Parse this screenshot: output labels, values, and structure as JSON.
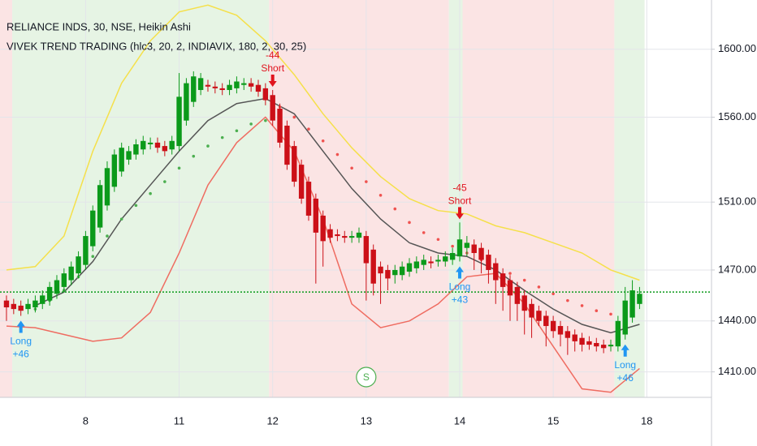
{
  "chart_data": {
    "type": "candlestick",
    "title": "RELIANCE INDS, 30, NSE, Heikin Ashi",
    "subtitle": "VIVEK TREND TRADING (hlc3, 20, 2, INDIAVIX, 180, 2, 30, 25)",
    "xlim": [
      -0.9,
      98
    ],
    "ylim": [
      1395,
      1629
    ],
    "xticks": [
      {
        "value": 11,
        "label": "8"
      },
      {
        "value": 24,
        "label": "11"
      },
      {
        "value": 37,
        "label": "12"
      },
      {
        "value": 50,
        "label": "13"
      },
      {
        "value": 63,
        "label": "14"
      },
      {
        "value": 76,
        "label": "15"
      },
      {
        "value": 89,
        "label": "18"
      }
    ],
    "yticks": [
      {
        "value": 1600,
        "label": "1600.00"
      },
      {
        "value": 1560,
        "label": "1560.00"
      },
      {
        "value": 1510,
        "label": "1510.00"
      },
      {
        "value": 1470,
        "label": "1470.00"
      },
      {
        "value": 1440,
        "label": "1440.00"
      },
      {
        "value": 1410,
        "label": "1410.00"
      }
    ],
    "grid": true,
    "up_color": "#0b9a1a",
    "down_color": "#cc1018",
    "open": [
      1452,
      1450,
      1449,
      1447,
      1448,
      1450,
      1452,
      1456,
      1460,
      1464,
      1468,
      1473,
      1484,
      1495,
      1508,
      1519,
      1528,
      1535,
      1538,
      1541,
      1544,
      1545,
      1543,
      1541,
      1543,
      1558,
      1569,
      1576,
      1579,
      1578,
      1577,
      1576,
      1577,
      1579,
      1580,
      1579,
      1577,
      1573,
      1565,
      1555,
      1543,
      1532,
      1522,
      1512,
      1502,
      1494,
      1491,
      1490,
      1489,
      1489,
      1490,
      1482,
      1472,
      1470,
      1467,
      1467,
      1469,
      1471,
      1473,
      1475,
      1475,
      1475,
      1476,
      1478,
      1483,
      1485,
      1483,
      1479,
      1474,
      1468,
      1464,
      1460,
      1455,
      1450,
      1446,
      1443,
      1440,
      1437,
      1434,
      1432,
      1430,
      1428,
      1427,
      1426,
      1425,
      1425,
      1432,
      1442,
      1450
    ],
    "high": [
      1455,
      1453,
      1452,
      1453,
      1455,
      1458,
      1463,
      1467,
      1471,
      1475,
      1481,
      1493,
      1508,
      1523,
      1534,
      1541,
      1545,
      1543,
      1547,
      1549,
      1548,
      1548,
      1546,
      1549,
      1586,
      1583,
      1587,
      1586,
      1582,
      1581,
      1580,
      1582,
      1584,
      1583,
      1583,
      1582,
      1580,
      1576,
      1568,
      1558,
      1546,
      1535,
      1525,
      1515,
      1505,
      1497,
      1494,
      1493,
      1493,
      1495,
      1493,
      1485,
      1475,
      1473,
      1473,
      1475,
      1477,
      1478,
      1479,
      1478,
      1479,
      1481,
      1483,
      1498,
      1490,
      1488,
      1486,
      1482,
      1477,
      1471,
      1467,
      1463,
      1458,
      1453,
      1449,
      1446,
      1443,
      1440,
      1437,
      1435,
      1433,
      1431,
      1430,
      1429,
      1429,
      1443,
      1460,
      1464,
      1460
    ],
    "low": [
      1440,
      1444,
      1443,
      1444,
      1445,
      1447,
      1449,
      1453,
      1457,
      1461,
      1465,
      1470,
      1481,
      1492,
      1505,
      1516,
      1525,
      1532,
      1535,
      1538,
      1541,
      1539,
      1537,
      1538,
      1540,
      1555,
      1566,
      1573,
      1575,
      1574,
      1573,
      1573,
      1574,
      1576,
      1575,
      1572,
      1567,
      1555,
      1542,
      1529,
      1519,
      1509,
      1499,
      1462,
      1472,
      1486,
      1487,
      1486,
      1486,
      1486,
      1452,
      1455,
      1450,
      1458,
      1462,
      1464,
      1466,
      1468,
      1470,
      1471,
      1472,
      1472,
      1473,
      1475,
      1478,
      1470,
      1468,
      1462,
      1450,
      1446,
      1440,
      1440,
      1432,
      1430,
      1437,
      1425,
      1430,
      1425,
      1420,
      1422,
      1422,
      1423,
      1422,
      1421,
      1422,
      1422,
      1429,
      1439,
      1447
    ],
    "close": [
      1448,
      1447,
      1446,
      1450,
      1452,
      1455,
      1460,
      1464,
      1468,
      1472,
      1478,
      1490,
      1505,
      1520,
      1530,
      1538,
      1542,
      1540,
      1544,
      1546,
      1545,
      1542,
      1540,
      1546,
      1572,
      1580,
      1584,
      1583,
      1578,
      1577,
      1576,
      1579,
      1581,
      1580,
      1578,
      1575,
      1570,
      1558,
      1545,
      1532,
      1522,
      1512,
      1502,
      1492,
      1487,
      1489,
      1490,
      1489,
      1490,
      1492,
      1474,
      1462,
      1468,
      1465,
      1470,
      1472,
      1474,
      1475,
      1476,
      1474,
      1476,
      1478,
      1480,
      1488,
      1486,
      1480,
      1476,
      1470,
      1464,
      1460,
      1455,
      1450,
      1446,
      1442,
      1440,
      1437,
      1434,
      1432,
      1430,
      1428,
      1426,
      1426,
      1425,
      1424,
      1426,
      1440,
      1452,
      1458,
      1456
    ],
    "lines": [
      {
        "color": "#555555",
        "x": [
          4,
          8,
          12,
          16,
          20,
          24,
          28,
          32,
          36,
          40,
          44,
          48,
          52,
          56,
          60,
          64,
          68,
          72,
          76,
          80,
          84,
          88
        ],
        "values": [
          1449,
          1457,
          1475,
          1500,
          1520,
          1540,
          1558,
          1568,
          1571,
          1562,
          1540,
          1518,
          1500,
          1486,
          1480,
          1478,
          1470,
          1458,
          1447,
          1438,
          1433,
          1438
        ]
      },
      {
        "color": "#f5e04a",
        "x": [
          0,
          4,
          8,
          12,
          16,
          20,
          24,
          28,
          32,
          36,
          40,
          44,
          48,
          52,
          56,
          60,
          64,
          68,
          72,
          76,
          80,
          84,
          88
        ],
        "values": [
          1470,
          1472,
          1490,
          1540,
          1580,
          1605,
          1622,
          1626,
          1620,
          1605,
          1585,
          1562,
          1542,
          1525,
          1512,
          1505,
          1503,
          1496,
          1492,
          1486,
          1480,
          1470,
          1464
        ]
      },
      {
        "color": "#ef6c61",
        "x": [
          0,
          4,
          8,
          12,
          16,
          20,
          24,
          28,
          32,
          36,
          40,
          44,
          48,
          52,
          56,
          60,
          64,
          68,
          72,
          76,
          80,
          84,
          88
        ],
        "values": [
          1437,
          1436,
          1432,
          1428,
          1430,
          1445,
          1480,
          1520,
          1545,
          1560,
          1540,
          1500,
          1450,
          1436,
          1440,
          1450,
          1466,
          1468,
          1450,
          1425,
          1400,
          1398,
          1412
        ]
      }
    ],
    "stops": [
      {
        "color": "#4caf50",
        "x": [
          4,
          6,
          8,
          10,
          12,
          14,
          16,
          18,
          20,
          22,
          24,
          26,
          28,
          30,
          32,
          34,
          36
        ],
        "values": [
          1447,
          1452,
          1458,
          1466,
          1478,
          1490,
          1500,
          1508,
          1515,
          1522,
          1530,
          1537,
          1543,
          1548,
          1552,
          1556,
          1558
        ]
      },
      {
        "color": "#ef5350",
        "x": [
          38,
          40,
          42,
          44,
          46,
          48,
          50,
          52,
          54,
          56,
          58,
          60,
          62,
          64,
          66,
          68,
          70,
          72,
          74,
          76,
          78,
          80,
          82,
          84
        ],
        "values": [
          1566,
          1560,
          1553,
          1546,
          1538,
          1530,
          1522,
          1514,
          1506,
          1498,
          1492,
          1488,
          1484,
          1480,
          1476,
          1472,
          1468,
          1464,
          1460,
          1456,
          1452,
          1449,
          1446,
          1444
        ]
      }
    ],
    "regions": [
      {
        "start": -0.9,
        "end": 0.8,
        "color": "#fbe4e4"
      },
      {
        "start": 0.8,
        "end": 36.5,
        "color": "#e6f4e4"
      },
      {
        "start": 36.5,
        "end": 61.5,
        "color": "#fbe4e4"
      },
      {
        "start": 61.5,
        "end": 63.4,
        "color": "#e6f4e4"
      },
      {
        "start": 63.4,
        "end": 84.5,
        "color": "#fbe4e4"
      },
      {
        "start": 84.5,
        "end": 88.7,
        "color": "#e6f4e4"
      }
    ],
    "signals": [
      {
        "x": 2,
        "side": "long",
        "label": "Long",
        "amount": "+46"
      },
      {
        "x": 37,
        "side": "short",
        "label": "Short",
        "amount": "-44"
      },
      {
        "x": 63,
        "side": "short",
        "label": "Short",
        "amount": "-45"
      },
      {
        "x": 63,
        "side": "long",
        "label": "Long",
        "amount": "+43"
      },
      {
        "x": 86,
        "side": "long",
        "label": "Long",
        "amount": "+46"
      }
    ],
    "long_color": "#2196f3",
    "short_color": "#e0141e",
    "last_price_line": {
      "value": 1457,
      "color": "#0b9a1a"
    },
    "marker": {
      "x": 50,
      "text": "S"
    }
  }
}
